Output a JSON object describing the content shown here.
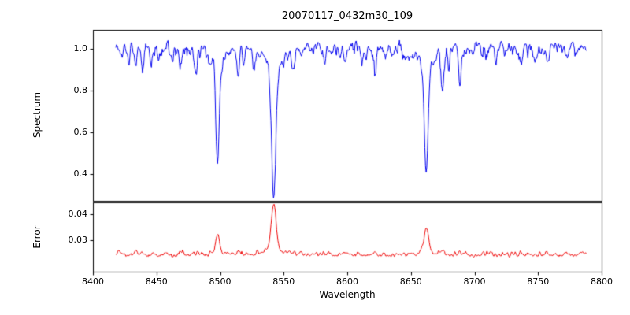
{
  "chart_data": {
    "type": "line",
    "title": "20070117_0432m30_109",
    "xlabel": "Wavelength",
    "grid": false,
    "legend": "none",
    "xlim": [
      8400,
      8800
    ],
    "xticks": {
      "values": [
        8400,
        8450,
        8500,
        8550,
        8600,
        8650,
        8700,
        8750,
        8800
      ],
      "labels": [
        "8400",
        "8450",
        "8500",
        "8550",
        "8600",
        "8650",
        "8700",
        "8750",
        "8800"
      ]
    },
    "panels": [
      {
        "name": "spectrum",
        "ylabel": "Spectrum",
        "line_color": "#0000ee",
        "ylim": [
          0.27,
          1.09
        ],
        "yticks": {
          "values": [
            0.4,
            0.6,
            0.8,
            1.0
          ],
          "labels": [
            "0.4",
            "0.6",
            "0.8",
            "1.0"
          ]
        },
        "x_start": 8418,
        "x_end": 8788,
        "x_step": 0.5,
        "continuum": 1.0,
        "noise_sigma": 0.02,
        "noise_seed": 20070117,
        "strong_lines": [
          {
            "center": 8498.0,
            "depth": 0.5,
            "width": 1.3,
            "wing_depth": 0.06,
            "wing_width": 6.0
          },
          {
            "center": 8542.1,
            "depth": 0.62,
            "width": 1.6,
            "wing_depth": 0.09,
            "wing_width": 9.0
          },
          {
            "center": 8662.1,
            "depth": 0.55,
            "width": 1.5,
            "wing_depth": 0.07,
            "wing_width": 7.0
          }
        ],
        "weak_line_columns": [
          "center",
          "depth",
          "width"
        ],
        "weak_lines": [
          [
            8423.0,
            0.05,
            0.8
          ],
          [
            8428.0,
            0.04,
            0.7
          ],
          [
            8434.0,
            0.09,
            0.9
          ],
          [
            8439.0,
            0.11,
            0.9
          ],
          [
            8446.5,
            0.05,
            0.8
          ],
          [
            8452.0,
            0.04,
            0.7
          ],
          [
            8462.0,
            0.05,
            0.8
          ],
          [
            8468.5,
            0.07,
            0.8
          ],
          [
            8476.0,
            0.04,
            0.7
          ],
          [
            8481.5,
            0.05,
            0.8
          ],
          [
            8514.1,
            0.14,
            1.0
          ],
          [
            8518.1,
            0.06,
            0.8
          ],
          [
            8526.5,
            0.05,
            0.8
          ],
          [
            8556.8,
            0.06,
            0.8
          ],
          [
            8564.0,
            0.04,
            0.7
          ],
          [
            8582.3,
            0.05,
            0.8
          ],
          [
            8598.8,
            0.06,
            0.8
          ],
          [
            8611.5,
            0.05,
            0.8
          ],
          [
            8621.6,
            0.07,
            0.9
          ],
          [
            8636.0,
            0.04,
            0.7
          ],
          [
            8648.5,
            0.05,
            0.8
          ],
          [
            8675.0,
            0.19,
            1.0
          ],
          [
            8679.6,
            0.07,
            0.8
          ],
          [
            8688.6,
            0.16,
            1.0
          ],
          [
            8699.0,
            0.04,
            0.7
          ],
          [
            8710.2,
            0.05,
            0.8
          ],
          [
            8717.0,
            0.04,
            0.7
          ],
          [
            8736.6,
            0.07,
            0.9
          ],
          [
            8747.0,
            0.05,
            0.8
          ],
          [
            8757.1,
            0.06,
            0.8
          ],
          [
            8772.8,
            0.05,
            0.8
          ],
          [
            8780.0,
            0.04,
            0.7
          ]
        ]
      },
      {
        "name": "error",
        "ylabel": "Error",
        "line_color": "#ee0000",
        "ylim": [
          0.018,
          0.0445
        ],
        "yticks": {
          "values": [
            0.03,
            0.04
          ],
          "labels": [
            "0.03",
            "0.04"
          ]
        },
        "x_start": 8418,
        "x_end": 8788,
        "x_step": 0.5,
        "baseline": 0.0245,
        "noise_sigma": 0.0005,
        "noise_seed": 432,
        "main_peaks": [
          {
            "center": 8498.0,
            "amplitude": 0.0062,
            "width": 1.6,
            "wing_amplitude": 0.0008,
            "wing_width": 5.0
          },
          {
            "center": 8542.1,
            "amplitude": 0.017,
            "width": 1.9,
            "wing_amplitude": 0.0022,
            "wing_width": 8.0
          },
          {
            "center": 8662.1,
            "amplitude": 0.009,
            "width": 1.8,
            "wing_amplitude": 0.0012,
            "wing_width": 6.0
          }
        ],
        "minor_peak_columns": [
          "center",
          "amplitude",
          "width"
        ],
        "minor_peaks": [
          [
            8421.0,
            0.001,
            2.5
          ],
          [
            8434.0,
            0.0013,
            1.2
          ],
          [
            8439.0,
            0.0014,
            1.2
          ],
          [
            8468.5,
            0.0007,
            1.1
          ],
          [
            8514.1,
            0.0013,
            1.2
          ],
          [
            8556.8,
            0.0006,
            1.1
          ],
          [
            8582.3,
            0.0005,
            1.0
          ],
          [
            8598.8,
            0.0006,
            1.1
          ],
          [
            8621.6,
            0.0006,
            1.1
          ],
          [
            8648.5,
            0.0005,
            1.0
          ],
          [
            8675.0,
            0.0016,
            1.2
          ],
          [
            8688.6,
            0.0014,
            1.2
          ],
          [
            8710.2,
            0.0005,
            1.0
          ],
          [
            8736.6,
            0.0007,
            1.1
          ],
          [
            8757.1,
            0.0007,
            1.1
          ],
          [
            8772.8,
            0.0009,
            1.6
          ],
          [
            8785.0,
            0.0012,
            2.2
          ]
        ]
      }
    ]
  }
}
